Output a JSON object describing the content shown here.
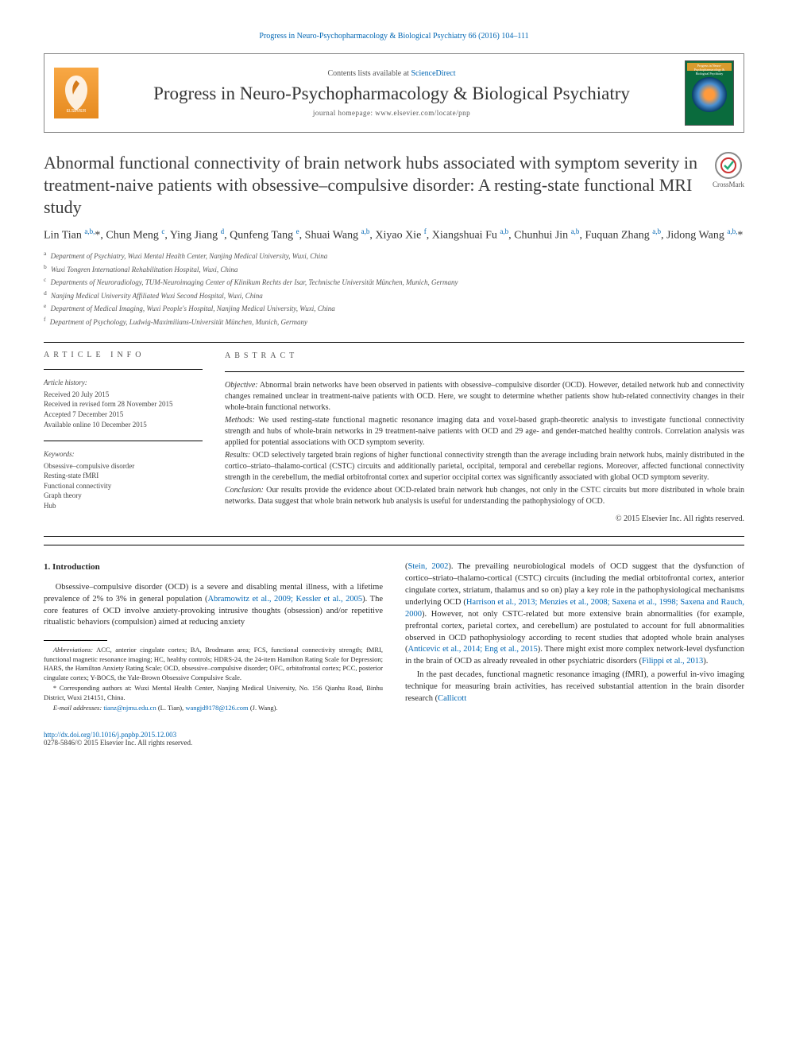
{
  "top_link": "Progress in Neuro-Psychopharmacology & Biological Psychiatry 66 (2016) 104–111",
  "header": {
    "contents_prefix": "Contents lists available at ",
    "contents_link": "ScienceDirect",
    "journal_name": "Progress in Neuro-Psychopharmacology & Biological Psychiatry",
    "homepage_label": "journal homepage: ",
    "homepage_url": "www.elsevier.com/locate/pnp",
    "elsevier_text": "ELSEVIER",
    "cover_text": "Progress in Neuro-Psychopharmacology & Biological Psychiatry"
  },
  "crossmark_label": "CrossMark",
  "title": "Abnormal functional connectivity of brain network hubs associated with symptom severity in treatment-naive patients with obsessive–compulsive disorder: A resting-state functional MRI study",
  "authors_html": "Lin Tian <a>a,b,</a>*, Chun Meng <a>c</a>, Ying Jiang <a>d</a>, Qunfeng Tang <a>e</a>, Shuai Wang <a>a,b</a>, Xiyao Xie <a>f</a>, Xiangshuai Fu <a>a,b</a>, Chunhui Jin <a>a,b</a>, Fuquan Zhang <a>a,b</a>, Jidong Wang <a>a,b,</a>*",
  "affiliations": [
    {
      "sup": "a",
      "text": "Department of Psychiatry, Wuxi Mental Health Center, Nanjing Medical University, Wuxi, China"
    },
    {
      "sup": "b",
      "text": "Wuxi Tongren International Rehabilitation Hospital, Wuxi, China"
    },
    {
      "sup": "c",
      "text": "Departments of Neuroradiology, TUM-Neuroimaging Center of Klinikum Rechts der Isar, Technische Universität München, Munich, Germany"
    },
    {
      "sup": "d",
      "text": "Nanjing Medical University Affiliated Wuxi Second Hospital, Wuxi, China"
    },
    {
      "sup": "e",
      "text": "Department of Medical Imaging, Wuxi People's Hospital, Nanjing Medical University, Wuxi, China"
    },
    {
      "sup": "f",
      "text": "Department of Psychology, Ludwig-Maximilians-Universität München, Munich, Germany"
    }
  ],
  "info": {
    "head": "ARTICLE INFO",
    "history_label": "Article history:",
    "history": [
      "Received 20 July 2015",
      "Received in revised form 28 November 2015",
      "Accepted 7 December 2015",
      "Available online 10 December 2015"
    ],
    "keywords_label": "Keywords:",
    "keywords": [
      "Obsessive–compulsive disorder",
      "Resting-state fMRI",
      "Functional connectivity",
      "Graph theory",
      "Hub"
    ]
  },
  "abstract": {
    "head": "ABSTRACT",
    "paras": [
      {
        "label": "Objective:",
        "text": " Abnormal brain networks have been observed in patients with obsessive–compulsive disorder (OCD). However, detailed network hub and connectivity changes remained unclear in treatment-naive patients with OCD. Here, we sought to determine whether patients show hub-related connectivity changes in their whole-brain functional networks."
      },
      {
        "label": "Methods:",
        "text": " We used resting-state functional magnetic resonance imaging data and voxel-based graph-theoretic analysis to investigate functional connectivity strength and hubs of whole-brain networks in 29 treatment-naive patients with OCD and 29 age- and gender-matched healthy controls. Correlation analysis was applied for potential associations with OCD symptom severity."
      },
      {
        "label": "Results:",
        "text": " OCD selectively targeted brain regions of higher functional connectivity strength than the average including brain network hubs, mainly distributed in the cortico–striato–thalamo-cortical (CSTC) circuits and additionally parietal, occipital, temporal and cerebellar regions. Moreover, affected functional connectivity strength in the cerebellum, the medial orbitofrontal cortex and superior occipital cortex was significantly associated with global OCD symptom severity."
      },
      {
        "label": "Conclusion:",
        "text": " Our results provide the evidence about OCD-related brain network hub changes, not only in the CSTC circuits but more distributed in whole brain networks. Data suggest that whole brain network hub analysis is useful for understanding the pathophysiology of OCD."
      }
    ],
    "copyright": "© 2015 Elsevier Inc. All rights reserved."
  },
  "body": {
    "section_heading": "1. Introduction",
    "col1_p1_pre": "Obsessive–compulsive disorder (OCD) is a severe and disabling mental illness, with a lifetime prevalence of 2% to 3% in general population (",
    "col1_p1_link": "Abramowitz et al., 2009; Kessler et al., 2005",
    "col1_p1_post": "). The core features of OCD involve anxiety-provoking intrusive thoughts (obsession) and/or repetitive ritualistic behaviors (compulsion) aimed at reducing anxiety",
    "col2_p1_a": "(",
    "col2_p1_link1": "Stein, 2002",
    "col2_p1_b": "). The prevailing neurobiological models of OCD suggest that the dysfunction of cortico–striato–thalamo-cortical (CSTC) circuits (including the medial orbitofrontal cortex, anterior cingulate cortex, striatum, thalamus and so on) play a key role in the pathophysiological mechanisms underlying OCD (",
    "col2_p1_link2": "Harrison et al., 2013; Menzies et al., 2008; Saxena et al., 1998; Saxena and Rauch, 2000",
    "col2_p1_c": "). However, not only CSTC-related but more extensive brain abnormalities (for example, prefrontal cortex, parietal cortex, and cerebellum) are postulated to account for full abnormalities observed in OCD pathophysiology according to recent studies that adopted whole brain analyses (",
    "col2_p1_link3": "Anticevic et al., 2014; Eng et al., 2015",
    "col2_p1_d": "). There might exist more complex network-level dysfunction in the brain of OCD as already revealed in other psychiatric disorders (",
    "col2_p1_link4": "Filippi et al., 2013",
    "col2_p1_e": ").",
    "col2_p2_a": "In the past decades, functional magnetic resonance imaging (fMRI), a powerful in-vivo imaging technique for measuring brain activities, has received substantial attention in the brain disorder research (",
    "col2_p2_link": "Callicott"
  },
  "footnotes": {
    "abbrev_label": "Abbreviations:",
    "abbrev_text": " ACC, anterior cingulate cortex; BA, Brodmann area; FCS, functional connectivity strength; fMRI, functional magnetic resonance imaging; HC, healthy controls; HDRS-24, the 24-item Hamilton Rating Scale for Depression; HARS, the Hamilton Anxiety Rating Scale; OCD, obsessive–compulsive disorder; OFC, orbitofrontal cortex; PCC, posterior cingulate cortex; Y-BOCS, the Yale-Brown Obsessive Compulsive Scale.",
    "corr_label": "* Corresponding authors at: ",
    "corr_text": "Wuxi Mental Health Center, Nanjing Medical University, No. 156 Qianhu Road, Binhu District, Wuxi 214151, China.",
    "email_label": "E-mail addresses:",
    "email1": "tianz@njmu.edu.cn",
    "email1_who": " (L. Tian), ",
    "email2": "wangjd9178@126.com",
    "email2_who": " (J. Wang)."
  },
  "footer": {
    "doi": "http://dx.doi.org/10.1016/j.pnpbp.2015.12.003",
    "issn": "0278-5846/© 2015 Elsevier Inc. All rights reserved."
  },
  "colors": {
    "link": "#0066b3",
    "elsevier_orange": "#f08a24",
    "cover_green": "#0a6b3d"
  }
}
